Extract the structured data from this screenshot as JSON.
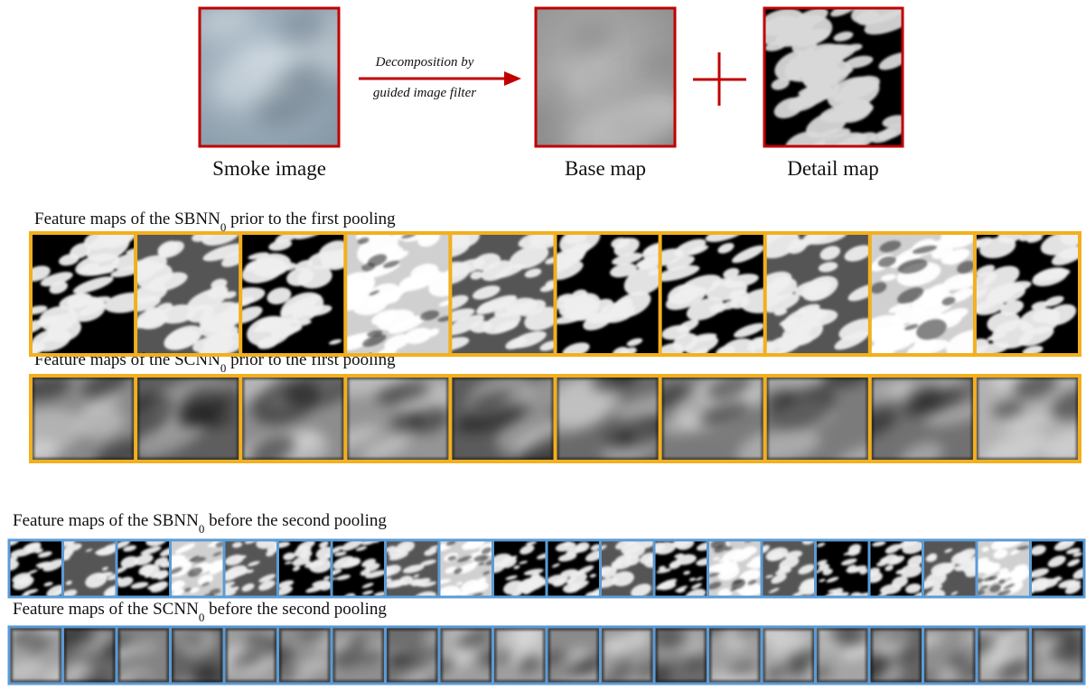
{
  "top": {
    "smoke_caption": "Smoke image",
    "arrow_label": [
      "Decomposition by",
      "guided image filter"
    ],
    "base_caption": "Base map",
    "detail_caption": "Detail map"
  },
  "rows": [
    {
      "label": "Feature maps of the SBNN",
      "subscript": "0",
      "suffix": " prior to the first pooling"
    },
    {
      "label": "Feature maps of the SCNN",
      "subscript": "0",
      "suffix": " prior to the first pooling"
    },
    {
      "label": "Feature maps of the SBNN",
      "subscript": "0",
      "suffix": " before the second pooling"
    },
    {
      "label": "Feature maps of the SCNN",
      "subscript": "0",
      "suffix": " before the second pooling"
    }
  ]
}
